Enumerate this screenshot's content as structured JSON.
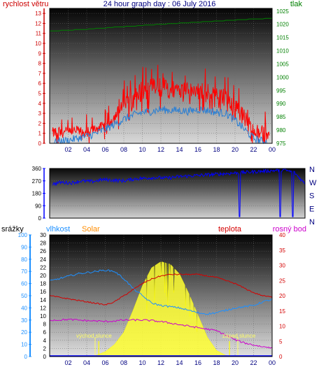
{
  "title": "24 hour graph day : 06 July 2016",
  "colors": {
    "wind": "#ff0000",
    "gust": "#2a7fd4",
    "pressure": "#008000",
    "direction": "#0000ff",
    "rain": "#0000ff",
    "humidity": "#1e90ff",
    "solar": "#ffff33",
    "solar_label": "#ff8c00",
    "temperature": "#d40000",
    "dewpoint": "#cc00cc"
  },
  "chart_data": [
    {
      "type": "line",
      "name": "wind-pressure-chart",
      "ylabel_left": "rychlost větru",
      "ylabel_right": "tlak",
      "x_ticks": [
        "02",
        "04",
        "06",
        "08",
        "10",
        "12",
        "14",
        "16",
        "18",
        "20",
        "22",
        "00"
      ],
      "y_left_ticks": [
        0,
        1,
        2,
        3,
        4,
        5,
        6,
        7,
        8,
        9,
        10,
        11,
        12,
        13
      ],
      "y_right_ticks": [
        975,
        980,
        985,
        990,
        995,
        1000,
        1005,
        1010,
        1015,
        1020,
        1025
      ],
      "ylim_left": [
        0,
        13.5
      ],
      "ylim_right": [
        975,
        1026
      ],
      "x": [
        0,
        1,
        2,
        3,
        4,
        5,
        6,
        7,
        8,
        9,
        10,
        11,
        12,
        13,
        14,
        15,
        16,
        17,
        18,
        19,
        20,
        21,
        22,
        23,
        24
      ],
      "series": [
        {
          "key": "wind_peak",
          "values": [
            1.5,
            1.8,
            1.6,
            1.8,
            1.5,
            2.0,
            2.2,
            3.2,
            4.8,
            5.8,
            6.5,
            6.5,
            6.8,
            6.3,
            6.5,
            6.0,
            6.2,
            6.0,
            5.8,
            5.5,
            4.5,
            3.5,
            2.0,
            1.8,
            1.5
          ]
        },
        {
          "key": "wind_mean",
          "values": [
            0.4,
            0.6,
            0.5,
            0.8,
            0.6,
            1.0,
            1.4,
            2.0,
            2.8,
            3.5,
            4.0,
            4.3,
            4.5,
            4.4,
            4.6,
            4.3,
            4.4,
            4.2,
            4.0,
            3.7,
            2.8,
            1.6,
            0.8,
            0.4,
            0.2
          ]
        },
        {
          "key": "gust",
          "values": [
            0,
            0.2,
            0.3,
            0.5,
            0.7,
            1.0,
            1.4,
            1.9,
            2.4,
            2.8,
            3.1,
            3.2,
            3.4,
            3.3,
            3.3,
            3.2,
            3.4,
            3.3,
            3.1,
            3.0,
            2.3,
            1.4,
            0.5,
            0.2,
            0
          ]
        },
        {
          "key": "pressure",
          "values": [
            1017.5,
            1017.6,
            1017.8,
            1017.9,
            1018.1,
            1018.4,
            1018.6,
            1018.9,
            1019.1,
            1019.3,
            1019.6,
            1019.8,
            1020.0,
            1020.2,
            1020.4,
            1020.6,
            1020.8,
            1021.0,
            1021.2,
            1021.4,
            1021.6,
            1021.8,
            1022.0,
            1022.1,
            1022.2
          ]
        }
      ]
    },
    {
      "type": "line",
      "name": "direction-chart",
      "y_left_ticks": [
        0,
        90,
        180,
        270,
        360
      ],
      "right_labels": [
        "N",
        "W",
        "S",
        "E",
        "N"
      ],
      "ylim": [
        0,
        360
      ],
      "x": [
        0,
        1,
        2,
        3,
        4,
        5,
        6,
        7,
        8,
        9,
        10,
        11,
        12,
        13,
        14,
        15,
        16,
        17,
        18,
        19,
        20,
        21,
        22,
        23,
        24
      ],
      "series": [
        {
          "key": "direction",
          "values": [
            240,
            260,
            255,
            270,
            265,
            280,
            275,
            270,
            285,
            290,
            295,
            290,
            300,
            305,
            310,
            315,
            320,
            325,
            330,
            335,
            340,
            345,
            350,
            330,
            250
          ]
        }
      ]
    },
    {
      "type": "line",
      "name": "weather-chart",
      "labels": {
        "rain": "srážky",
        "humidity": "vlhkost",
        "solar": "Solar",
        "temperature": "teplota",
        "dewpoint": "rosný bod",
        "sunrise": "východ slunce",
        "sunset": "západ slunce"
      },
      "x_ticks": [
        "02",
        "04",
        "06",
        "08",
        "10",
        "12",
        "14",
        "16",
        "18",
        "20",
        "22",
        "00"
      ],
      "y_rain_ticks": [
        0,
        10,
        20,
        30,
        40,
        50,
        60,
        70,
        80,
        90,
        100
      ],
      "y_humidity_ticks": [
        0,
        2,
        4,
        6,
        8,
        10,
        12,
        14,
        16,
        18,
        20,
        22,
        24,
        26,
        28,
        30
      ],
      "y_temp_ticks": [
        0,
        5,
        10,
        15,
        20,
        25,
        30,
        35,
        40
      ],
      "ylim_rain": [
        0,
        100
      ],
      "ylim_temp": [
        0,
        40
      ],
      "x": [
        0,
        1,
        2,
        3,
        4,
        5,
        6,
        7,
        8,
        9,
        10,
        11,
        12,
        13,
        14,
        15,
        16,
        17,
        18,
        19,
        20,
        21,
        22,
        23,
        24
      ],
      "sunrise_x": 4.9,
      "sunset_x": 20.3,
      "series": [
        {
          "key": "humidity",
          "values": [
            62,
            64,
            66,
            68,
            69,
            70,
            71,
            70,
            64,
            56,
            50,
            44,
            42,
            41,
            40,
            38,
            36,
            35,
            36,
            38,
            40,
            41,
            42,
            45,
            47
          ]
        },
        {
          "key": "temperature",
          "values": [
            20,
            19.5,
            19,
            18.5,
            18,
            17.5,
            17,
            18,
            20,
            22,
            24,
            25.5,
            26.5,
            27,
            27,
            27,
            27,
            26.5,
            26,
            25,
            24,
            22.5,
            21,
            20,
            19.5
          ]
        },
        {
          "key": "dewpoint",
          "values": [
            12,
            12,
            12.2,
            12,
            11.8,
            11.7,
            11.5,
            11.7,
            12,
            12,
            12,
            11.8,
            11.5,
            11,
            10.5,
            10,
            9.5,
            9,
            8.5,
            7,
            5.5,
            4.5,
            3.8,
            3.2,
            3
          ]
        },
        {
          "key": "solar",
          "values": [
            0,
            0,
            0,
            0,
            0,
            1,
            4,
            10,
            20,
            38,
            58,
            73,
            78,
            76,
            68,
            52,
            34,
            16,
            5,
            1,
            0,
            0,
            0,
            0,
            0
          ]
        }
      ]
    }
  ]
}
